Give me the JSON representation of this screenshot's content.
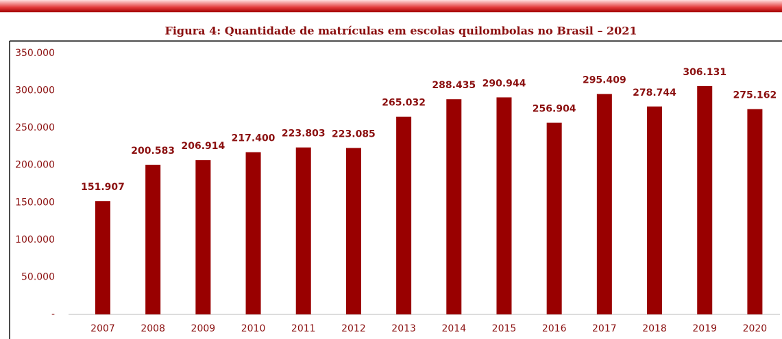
{
  "chart_data": {
    "type": "bar",
    "title": "Figura 4: Quantidade de matrículas em escolas quilombolas no Brasil – 2021",
    "categories": [
      "2007",
      "2008",
      "2009",
      "2010",
      "2011",
      "2012",
      "2013",
      "2014",
      "2015",
      "2016",
      "2017",
      "2018",
      "2019",
      "2020"
    ],
    "values": [
      151907,
      200583,
      206914,
      217400,
      223803,
      223085,
      265032,
      288435,
      290944,
      256904,
      295409,
      278744,
      306131,
      275162
    ],
    "value_labels": [
      "151.907",
      "200.583",
      "206.914",
      "217.400",
      "223.803",
      "223.085",
      "265.032",
      "288.435",
      "290.944",
      "256.904",
      "295.409",
      "278.744",
      "306.131",
      "275.162"
    ],
    "color": "#990000",
    "ylim": [
      0,
      350000
    ],
    "yticks": [
      {
        "value": 0,
        "label": "-"
      },
      {
        "value": 50000,
        "label": "50.000"
      },
      {
        "value": 100000,
        "label": "100.000"
      },
      {
        "value": 150000,
        "label": "150.000"
      },
      {
        "value": 200000,
        "label": "200.000"
      },
      {
        "value": 250000,
        "label": "250.000"
      },
      {
        "value": 300000,
        "label": "300.000"
      },
      {
        "value": 350000,
        "label": "350.000"
      }
    ],
    "grid": false
  }
}
